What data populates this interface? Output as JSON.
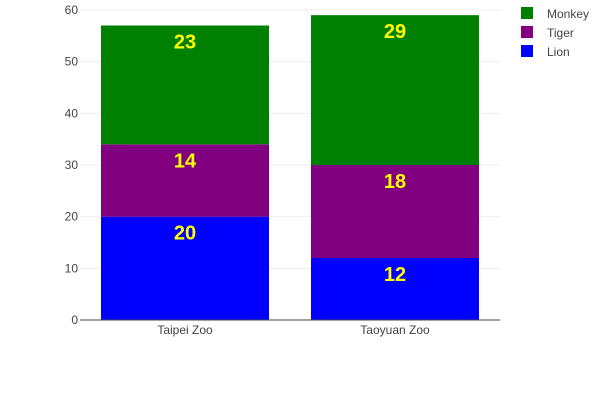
{
  "chart_data": {
    "type": "bar",
    "stacked": true,
    "categories": [
      "Taipei Zoo",
      "Taoyuan Zoo"
    ],
    "series": [
      {
        "name": "Lion",
        "values": [
          20,
          12
        ],
        "color": "#0000ff"
      },
      {
        "name": "Tiger",
        "values": [
          14,
          18
        ],
        "color": "#800080"
      },
      {
        "name": "Monkey",
        "values": [
          23,
          29
        ],
        "color": "#008000"
      }
    ],
    "title": "",
    "xlabel": "",
    "ylabel": "",
    "ylim": [
      0,
      60
    ],
    "yticks": [
      0,
      10,
      20,
      30,
      40,
      50,
      60
    ],
    "grid": true,
    "legend_position": "top-right",
    "data_label_color": "#ffff00"
  }
}
